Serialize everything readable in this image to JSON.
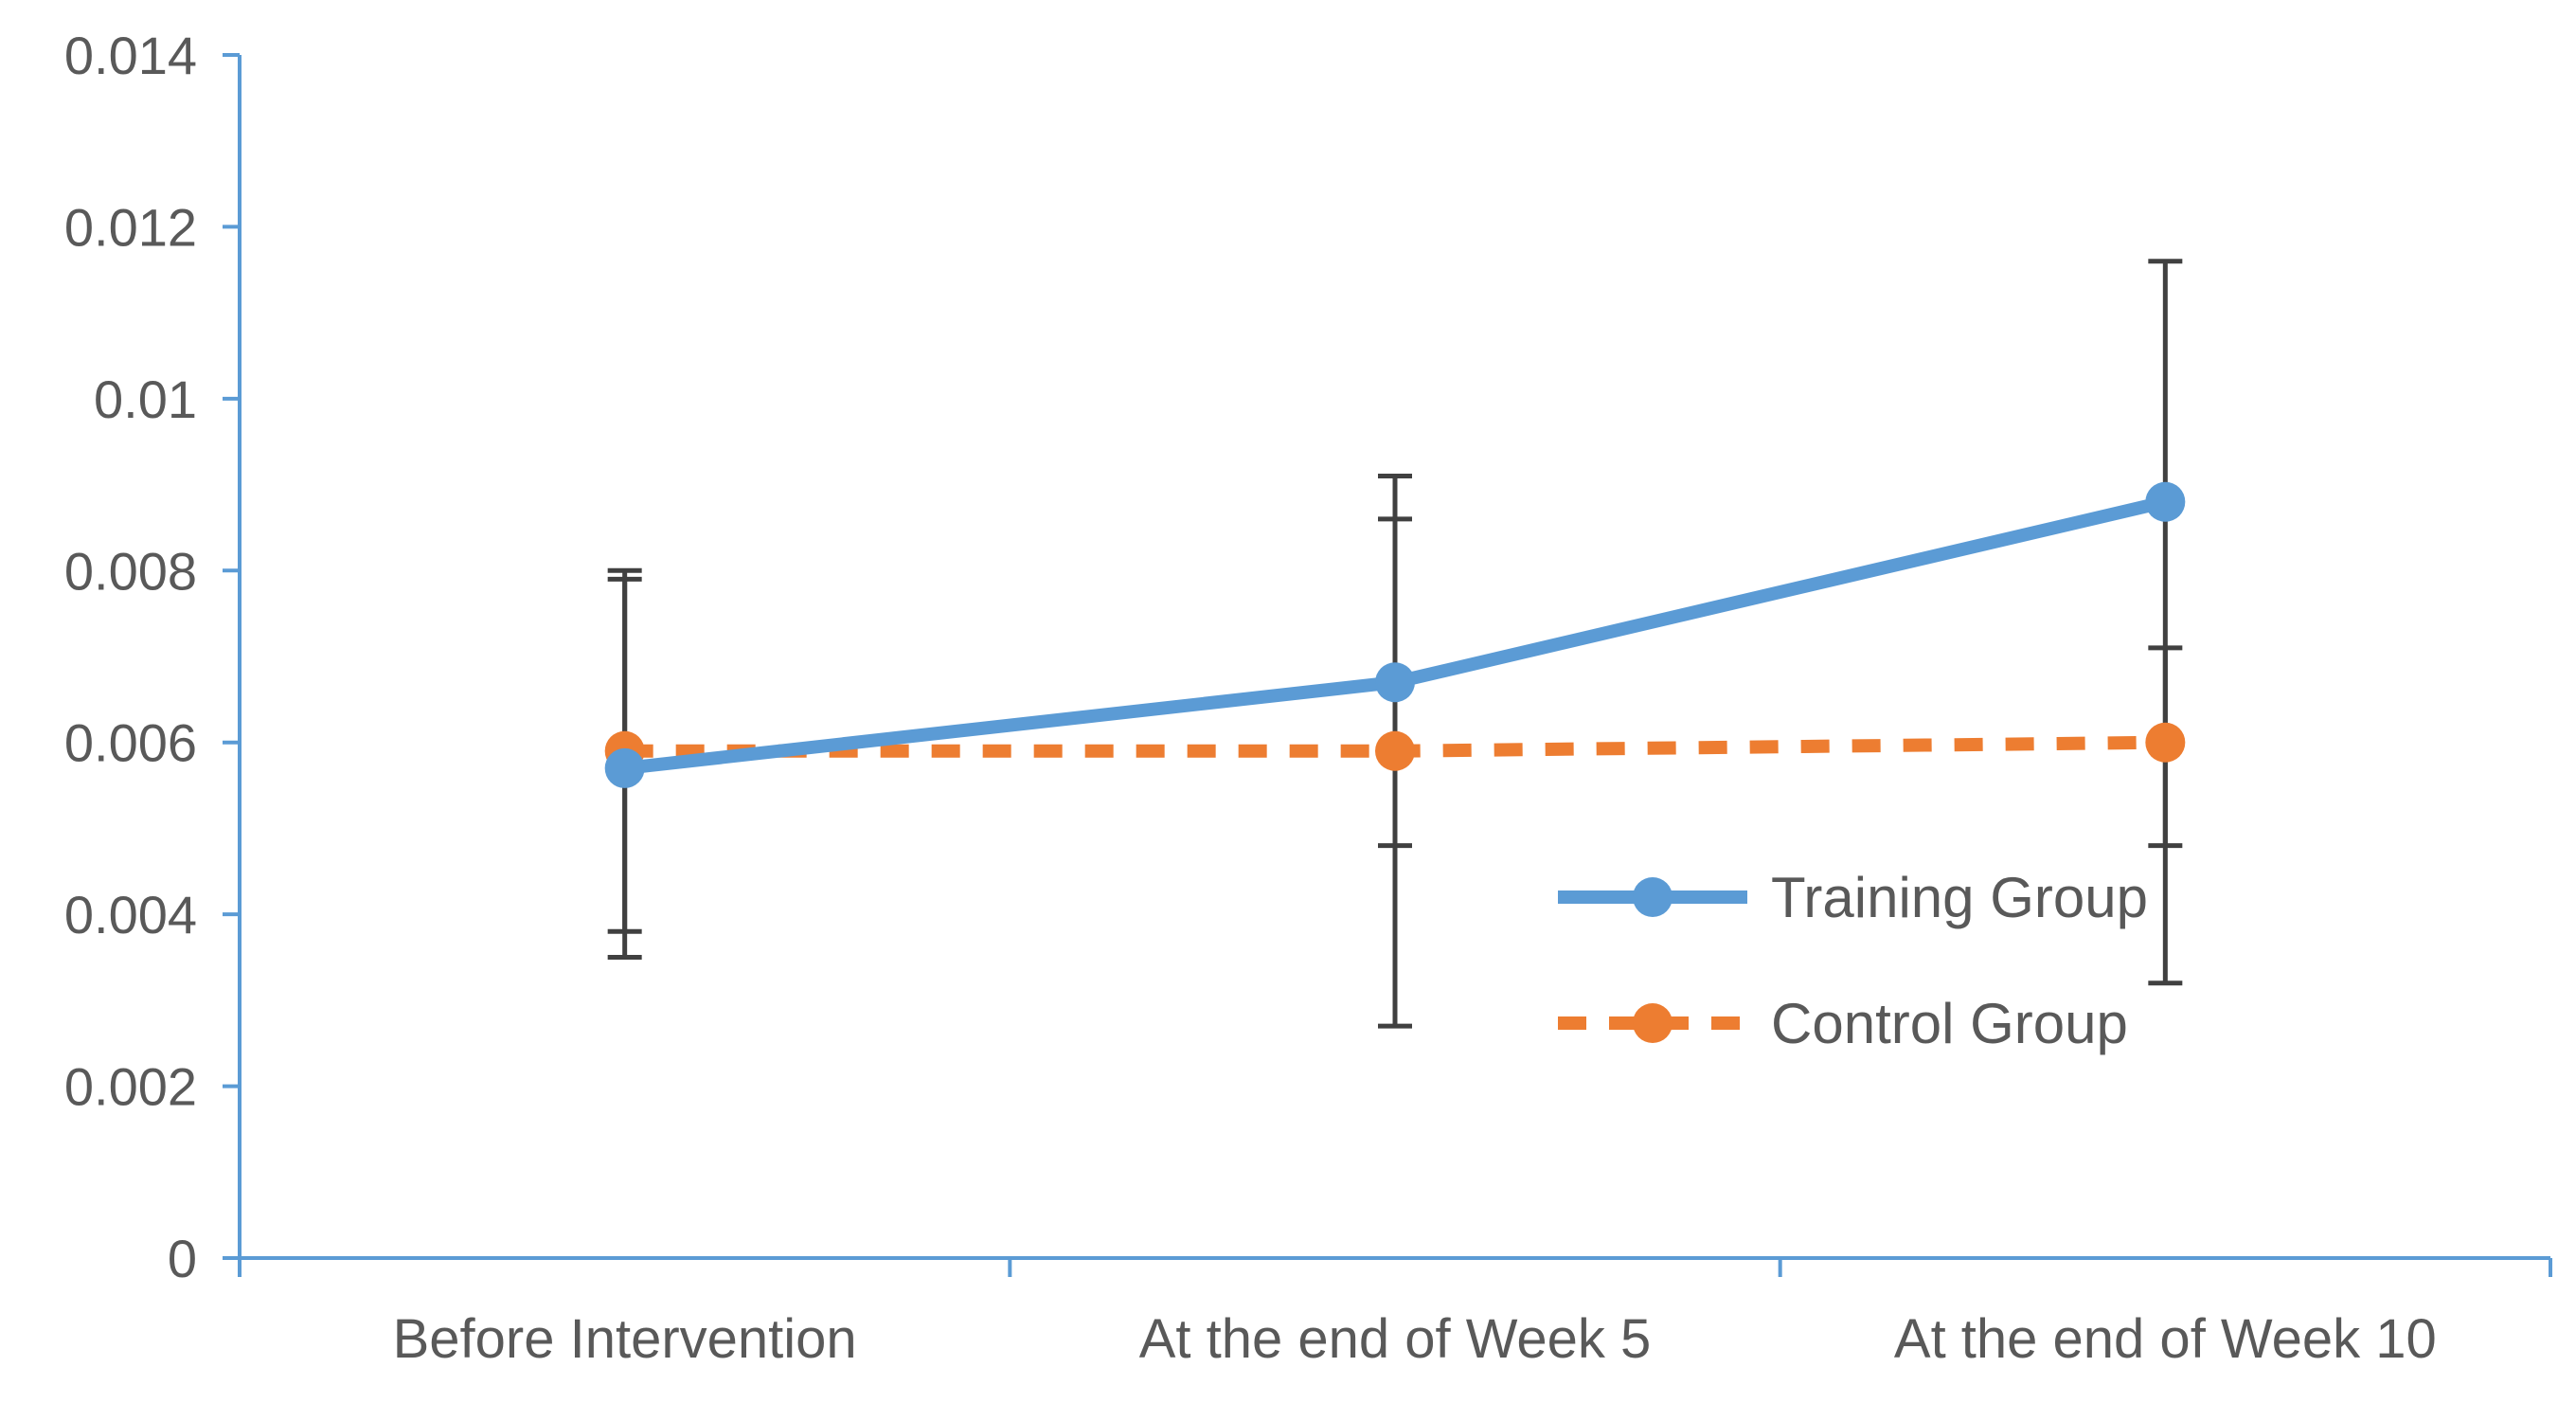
{
  "chart_data": {
    "type": "line",
    "title": "",
    "xlabel": "",
    "ylabel": "",
    "categories": [
      "Before Intervention",
      "At the end of Week 5",
      "At the end of Week 10"
    ],
    "ylim": [
      0,
      0.014
    ],
    "yticks": [
      0,
      0.002,
      0.004,
      0.006,
      0.008,
      0.01,
      0.012,
      0.014
    ],
    "ytick_labels": [
      "0",
      "0.002",
      "0.004",
      "0.006",
      "0.008",
      "0.01",
      "0.012",
      "0.014"
    ],
    "grid": false,
    "legend_position": "center-right",
    "series": [
      {
        "name": "Training Group",
        "color": "#5B9BD5",
        "line_style": "solid",
        "marker": "circle",
        "values": [
          0.0057,
          0.0067,
          0.0088
        ],
        "error_low": [
          0.0035,
          0.0027,
          0.0032
        ],
        "error_high": [
          0.008,
          0.0091,
          0.0116
        ]
      },
      {
        "name": "Control Group",
        "color": "#ED7D31",
        "line_style": "dashed",
        "marker": "circle",
        "values": [
          0.0059,
          0.0059,
          0.006
        ],
        "error_low": [
          0.0038,
          0.0048,
          0.0048
        ],
        "error_high": [
          0.0079,
          0.0086,
          0.0071
        ]
      }
    ],
    "axis_color": "#5B9BD5",
    "error_bar_color": "#404040"
  }
}
